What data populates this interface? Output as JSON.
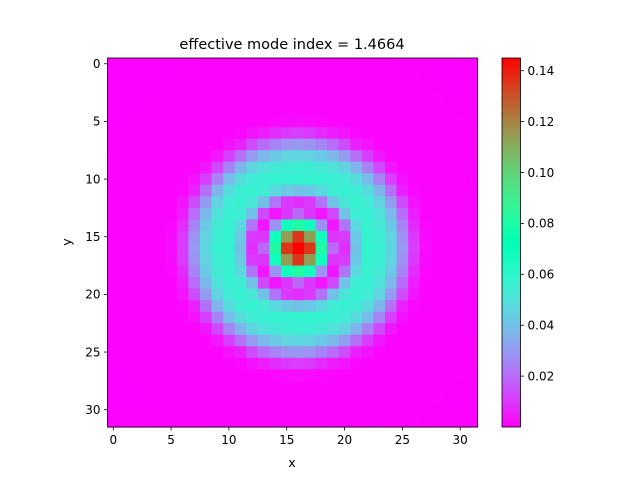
{
  "chart_data": {
    "type": "heatmap",
    "title": "effective mode index = 1.4664",
    "xlabel": "x",
    "ylabel": "y",
    "grid_size": [
      32,
      32
    ],
    "x_ticks": [
      0,
      5,
      10,
      15,
      20,
      25,
      30
    ],
    "y_ticks": [
      0,
      5,
      10,
      15,
      20,
      25,
      30
    ],
    "colormap": "rainbow",
    "colorbar": {
      "vmin": 0.0,
      "vmax": 0.145,
      "ticks": [
        0.02,
        0.04,
        0.06,
        0.08,
        0.1,
        0.12,
        0.14
      ],
      "tick_labels": [
        "0.02",
        "0.04",
        "0.06",
        "0.08",
        "0.10",
        "0.12",
        "0.14"
      ]
    },
    "field_model": {
      "center": [
        16,
        16
      ],
      "description": "radially symmetric mode intensity",
      "radial_profile": [
        [
          0.0,
          0.145
        ],
        [
          1.0,
          0.135
        ],
        [
          1.6,
          0.105
        ],
        [
          2.2,
          0.07
        ],
        [
          2.8,
          0.03
        ],
        [
          3.2,
          0.008
        ],
        [
          3.7,
          0.003
        ],
        [
          4.2,
          0.012
        ],
        [
          5.0,
          0.04
        ],
        [
          6.0,
          0.058
        ],
        [
          7.0,
          0.056
        ],
        [
          8.0,
          0.046
        ],
        [
          8.8,
          0.033
        ],
        [
          9.5,
          0.02
        ],
        [
          10.3,
          0.006
        ],
        [
          11.2,
          0.001
        ],
        [
          30.0,
          0.0
        ]
      ]
    }
  }
}
